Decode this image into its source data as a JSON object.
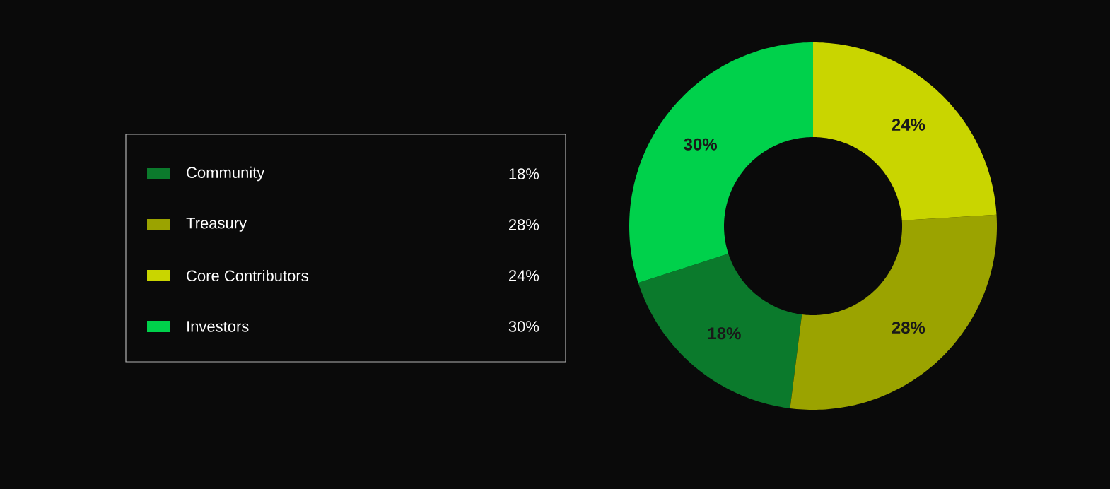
{
  "chart_data": {
    "type": "donut",
    "categories": [
      "Community",
      "Treasury",
      "Core Contributors",
      "Investors"
    ],
    "values": [
      18,
      28,
      24,
      30
    ],
    "value_labels": [
      "18%",
      "28%",
      "24%",
      "30%"
    ],
    "colors": [
      "#0b7a2c",
      "#9ba300",
      "#c9d500",
      "#00d14b"
    ],
    "legend": "left"
  }
}
